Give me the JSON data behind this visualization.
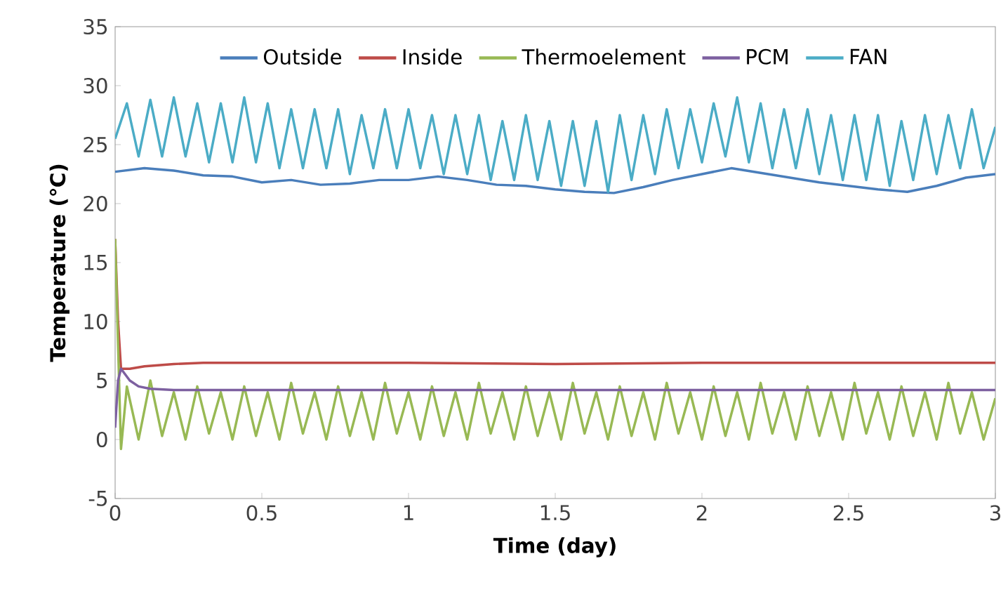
{
  "chart_data": {
    "type": "line",
    "xlabel": "Time (day)",
    "ylabel": "Temperature (℃)",
    "xlim": [
      0,
      3
    ],
    "ylim": [
      -5,
      35
    ],
    "xticks": [
      0,
      0.5,
      1,
      1.5,
      2,
      2.5,
      3
    ],
    "yticks": [
      -5,
      0,
      5,
      10,
      15,
      20,
      25,
      30,
      35
    ],
    "grid": false,
    "legend": "top",
    "marker": "none",
    "line_style": "solid",
    "x": [
      0,
      0.04,
      0.08,
      0.12,
      0.16,
      0.2,
      0.24,
      0.28,
      0.32,
      0.36,
      0.4,
      0.44,
      0.48,
      0.52,
      0.56,
      0.6,
      0.64,
      0.68,
      0.72,
      0.76,
      0.8,
      0.84,
      0.88,
      0.92,
      0.96,
      1,
      1.04,
      1.08,
      1.12,
      1.16,
      1.2,
      1.24,
      1.28,
      1.32,
      1.36,
      1.4,
      1.44,
      1.48,
      1.52,
      1.56,
      1.6,
      1.64,
      1.68,
      1.72,
      1.76,
      1.8,
      1.84,
      1.88,
      1.92,
      1.96,
      2,
      2.04,
      2.08,
      2.12,
      2.16,
      2.2,
      2.24,
      2.28,
      2.32,
      2.36,
      2.4,
      2.44,
      2.48,
      2.52,
      2.56,
      2.6,
      2.64,
      2.68,
      2.72,
      2.76,
      2.8,
      2.84,
      2.88,
      2.92,
      2.96,
      3
    ],
    "series": [
      {
        "name": "Outside",
        "color": "#4a7ebb",
        "x": [
          0,
          0.1,
          0.2,
          0.3,
          0.4,
          0.5,
          0.6,
          0.7,
          0.8,
          0.9,
          1,
          1.1,
          1.2,
          1.3,
          1.4,
          1.5,
          1.6,
          1.7,
          1.8,
          1.9,
          2,
          2.1,
          2.2,
          2.3,
          2.4,
          2.5,
          2.6,
          2.7,
          2.8,
          2.9,
          3
        ],
        "values": [
          22.7,
          23,
          22.8,
          22.4,
          22.3,
          21.8,
          22,
          21.6,
          21.7,
          22,
          22,
          22.3,
          22,
          21.6,
          21.5,
          21.2,
          21,
          20.9,
          21.4,
          22,
          22.5,
          23,
          22.6,
          22.2,
          21.8,
          21.5,
          21.2,
          21,
          21.5,
          22.2,
          22.5
        ]
      },
      {
        "name": "Inside",
        "color": "#be4b48",
        "x": [
          0,
          0.01,
          0.02,
          0.05,
          0.1,
          0.2,
          0.3,
          0.5,
          1,
          1.5,
          2,
          2.5,
          3
        ],
        "values": [
          17,
          10,
          6,
          6,
          6.2,
          6.4,
          6.5,
          6.5,
          6.5,
          6.4,
          6.5,
          6.5,
          6.5
        ]
      },
      {
        "name": "Thermoelement",
        "color": "#98b954",
        "x": [
          0,
          0.01,
          0.02,
          0.04,
          0.08,
          0.12,
          0.16,
          0.2,
          0.24,
          0.28,
          0.32,
          0.36,
          0.4,
          0.44,
          0.48,
          0.52,
          0.56,
          0.6,
          0.64,
          0.68,
          0.72,
          0.76,
          0.8,
          0.84,
          0.88,
          0.92,
          0.96,
          1,
          1.04,
          1.08,
          1.12,
          1.16,
          1.2,
          1.24,
          1.28,
          1.32,
          1.36,
          1.4,
          1.44,
          1.48,
          1.52,
          1.56,
          1.6,
          1.64,
          1.68,
          1.72,
          1.76,
          1.8,
          1.84,
          1.88,
          1.92,
          1.96,
          2,
          2.04,
          2.08,
          2.12,
          2.16,
          2.2,
          2.24,
          2.28,
          2.32,
          2.36,
          2.4,
          2.44,
          2.48,
          2.52,
          2.56,
          2.6,
          2.64,
          2.68,
          2.72,
          2.76,
          2.8,
          2.84,
          2.88,
          2.92,
          2.96,
          3
        ],
        "values": [
          17,
          8,
          -0.8,
          4.5,
          0,
          5,
          0.3,
          4,
          0,
          4.5,
          0.5,
          4,
          0,
          4.5,
          0.3,
          4,
          0,
          4.8,
          0.5,
          4,
          0,
          4.5,
          0.3,
          4,
          0,
          4.8,
          0.5,
          4,
          0,
          4.5,
          0.3,
          4,
          0,
          4.8,
          0.5,
          4,
          0,
          4.5,
          0.3,
          4,
          0,
          4.8,
          0.5,
          4,
          0,
          4.5,
          0.3,
          4,
          0,
          4.8,
          0.5,
          4,
          0,
          4.5,
          0.3,
          4,
          0,
          4.8,
          0.5,
          4,
          0,
          4.5,
          0.3,
          4,
          0,
          4.8,
          0.5,
          4,
          0,
          4.5,
          0.3,
          4,
          0,
          4.8,
          0.5,
          4,
          0,
          3.5
        ]
      },
      {
        "name": "PCM",
        "color": "#7d60a0",
        "x": [
          0,
          0.01,
          0.02,
          0.05,
          0.08,
          0.12,
          0.2,
          0.5,
          1,
          1.5,
          2,
          2.5,
          3
        ],
        "values": [
          1,
          5,
          6,
          5,
          4.5,
          4.3,
          4.2,
          4.2,
          4.2,
          4.2,
          4.2,
          4.2,
          4.2
        ]
      },
      {
        "name": "FAN",
        "color": "#4bacc6",
        "values": [
          25.5,
          28.5,
          24,
          28.8,
          24,
          29,
          24,
          28.5,
          23.5,
          28.5,
          23.5,
          29,
          23.5,
          28.5,
          23,
          28,
          23,
          28,
          23,
          28,
          22.5,
          27.5,
          23,
          28,
          23,
          28,
          23,
          27.5,
          22.5,
          27.5,
          22.5,
          27.5,
          22,
          27,
          22,
          27.5,
          22,
          27,
          21.5,
          27,
          21.5,
          27,
          21,
          27.5,
          22,
          27.5,
          22.5,
          28,
          23,
          28,
          23.5,
          28.5,
          24,
          29,
          23.5,
          28.5,
          23,
          28,
          23,
          28,
          22.5,
          27.5,
          22,
          27.5,
          22,
          27.5,
          21.5,
          27,
          22,
          27.5,
          22.5,
          27.5,
          23,
          28,
          23,
          26.5
        ]
      }
    ]
  }
}
